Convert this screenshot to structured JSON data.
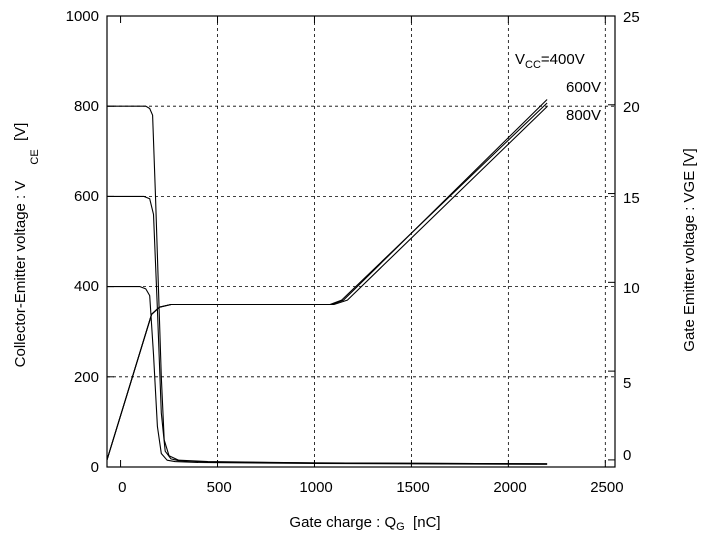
{
  "chart_data": {
    "type": "line",
    "title": "",
    "xlabel": "Gate charge  :  Q",
    "xlabel_sub": "G",
    "xlabel_unit": "  [nC]",
    "ylabel_left": "Collector-Emitter voltage : V",
    "ylabel_left_sub": "CE",
    "ylabel_left_unit": "  [V]",
    "ylabel_right": "Gate Emitter voltage : VGE [V]",
    "xlim": [
      -70,
      2550
    ],
    "ylim_left": [
      0,
      1000
    ],
    "ylim_right": [
      -0.4,
      25
    ],
    "x_ticks": [
      "0",
      "500",
      "1000",
      "1500",
      "2000",
      "2500"
    ],
    "y_left_ticks": [
      "0",
      "200",
      "400",
      "600",
      "800",
      "1000"
    ],
    "y_right_ticks": [
      "0",
      "5",
      "10",
      "15",
      "20",
      "25"
    ],
    "grid": true,
    "annotations": {
      "vcc_prefix": "V",
      "vcc_sub": "CC",
      "vcc_400": "=400V",
      "vcc_600": "600V",
      "vcc_800": "800V"
    },
    "series": [
      {
        "axis": "left",
        "curve": "VCE",
        "vcc": "400V",
        "x": [
          -70,
          100,
          130,
          150,
          170,
          190,
          210,
          240,
          280,
          400,
          1000,
          2200
        ],
        "y": [
          400,
          400,
          395,
          380,
          250,
          90,
          30,
          15,
          12,
          10,
          8,
          6
        ]
      },
      {
        "axis": "left",
        "curve": "VCE",
        "vcc": "600V",
        "x": [
          -70,
          120,
          150,
          170,
          190,
          210,
          230,
          260,
          300,
          450,
          1000,
          2200
        ],
        "y": [
          600,
          600,
          595,
          560,
          350,
          120,
          35,
          18,
          14,
          11,
          9,
          7
        ]
      },
      {
        "axis": "left",
        "curve": "VCE",
        "vcc": "800V",
        "x": [
          -70,
          130,
          150,
          165,
          180,
          195,
          210,
          225,
          250,
          300,
          450,
          1000,
          2200
        ],
        "y": [
          800,
          800,
          795,
          780,
          600,
          400,
          200,
          60,
          25,
          15,
          12,
          9,
          7
        ]
      },
      {
        "axis": "right",
        "curve": "VGE",
        "vcc": "400V",
        "x": [
          -70,
          160,
          200,
          260,
          1090,
          1150,
          2200
        ],
        "y": [
          0,
          8.2,
          8.6,
          8.75,
          8.75,
          9.0,
          20.3
        ]
      },
      {
        "axis": "right",
        "curve": "VGE",
        "vcc": "600V",
        "x": [
          -70,
          160,
          200,
          260,
          1080,
          1140,
          2200
        ],
        "y": [
          0,
          8.2,
          8.6,
          8.75,
          8.75,
          9.0,
          20.1
        ]
      },
      {
        "axis": "right",
        "curve": "VGE",
        "vcc": "800V",
        "x": [
          -70,
          160,
          200,
          260,
          1100,
          1170,
          2200
        ],
        "y": [
          0,
          8.2,
          8.6,
          8.75,
          8.75,
          9.0,
          19.9
        ]
      }
    ]
  }
}
